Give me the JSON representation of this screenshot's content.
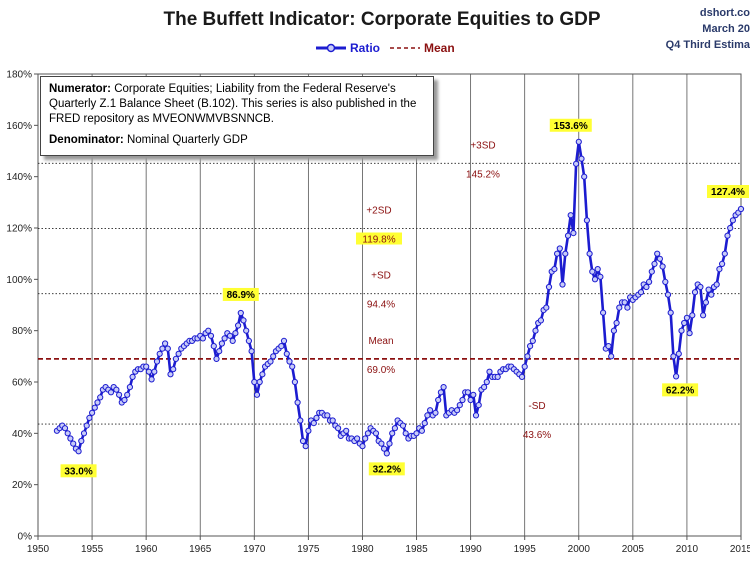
{
  "header": {
    "title": "The Buffett Indicator: Corporate Equities to GDP",
    "source_lines": [
      "dshort.co",
      "March 20",
      "Q4 Third Estima"
    ]
  },
  "legend": {
    "ratio": "Ratio",
    "mean": "Mean"
  },
  "note": {
    "numerator_label": "Numerator:",
    "numerator_text": "Corporate Equities; Liability from the Federal Reserve's Quarterly Z.1 Balance Sheet (B.102). This series is also published in the FRED repository  as MVEONWMVBSNNCB.",
    "denominator_label": "Denominator:",
    "denominator_text": "Nominal Quarterly GDP"
  },
  "colors": {
    "series": "#1c1cd0",
    "marker_fill": "#c8ccf8",
    "ref_line": "#8b1010",
    "highlight": "#ffff33",
    "grid": "#555555"
  },
  "chart_data": {
    "type": "line",
    "title": "The Buffett Indicator: Corporate Equities to GDP",
    "xlim": [
      1950,
      2015
    ],
    "ylim": [
      0,
      180
    ],
    "x_ticks": [
      "1950",
      "1955",
      "1960",
      "1965",
      "1970",
      "1975",
      "1980",
      "1985",
      "1990",
      "1995",
      "2000",
      "2005",
      "2010",
      "2015"
    ],
    "y_ticks": [
      "0%",
      "20%",
      "40%",
      "60%",
      "80%",
      "100%",
      "120%",
      "140%",
      "160%",
      "180%"
    ],
    "legend_position": "top-center",
    "series": [
      {
        "name": "Ratio",
        "points": [
          [
            1951.75,
            41
          ],
          [
            1952.0,
            42
          ],
          [
            1952.25,
            43
          ],
          [
            1952.5,
            42
          ],
          [
            1952.75,
            40
          ],
          [
            1953.0,
            38
          ],
          [
            1953.25,
            36
          ],
          [
            1953.5,
            34
          ],
          [
            1953.75,
            33
          ],
          [
            1954.0,
            37
          ],
          [
            1954.25,
            40
          ],
          [
            1954.5,
            43
          ],
          [
            1954.75,
            46
          ],
          [
            1955.0,
            48
          ],
          [
            1955.25,
            50
          ],
          [
            1955.5,
            52
          ],
          [
            1955.75,
            54
          ],
          [
            1956.0,
            57
          ],
          [
            1956.25,
            58
          ],
          [
            1956.5,
            57
          ],
          [
            1956.75,
            56
          ],
          [
            1957.0,
            58
          ],
          [
            1957.25,
            57
          ],
          [
            1957.5,
            55
          ],
          [
            1957.75,
            52
          ],
          [
            1958.0,
            53
          ],
          [
            1958.25,
            55
          ],
          [
            1958.5,
            58
          ],
          [
            1958.75,
            62
          ],
          [
            1959.0,
            64
          ],
          [
            1959.25,
            65
          ],
          [
            1959.5,
            65
          ],
          [
            1959.75,
            66
          ],
          [
            1960.0,
            66
          ],
          [
            1960.25,
            64
          ],
          [
            1960.5,
            61
          ],
          [
            1960.75,
            64
          ],
          [
            1961.0,
            68
          ],
          [
            1961.25,
            71
          ],
          [
            1961.5,
            73
          ],
          [
            1961.75,
            75
          ],
          [
            1962.0,
            73
          ],
          [
            1962.25,
            63
          ],
          [
            1962.5,
            65
          ],
          [
            1962.75,
            69
          ],
          [
            1963.0,
            71
          ],
          [
            1963.25,
            73
          ],
          [
            1963.5,
            74
          ],
          [
            1963.75,
            75
          ],
          [
            1964.0,
            76
          ],
          [
            1964.25,
            76
          ],
          [
            1964.5,
            77
          ],
          [
            1964.75,
            77
          ],
          [
            1965.0,
            78
          ],
          [
            1965.25,
            77
          ],
          [
            1965.5,
            79
          ],
          [
            1965.75,
            80
          ],
          [
            1966.0,
            78
          ],
          [
            1966.25,
            74
          ],
          [
            1966.5,
            69
          ],
          [
            1966.75,
            72
          ],
          [
            1967.0,
            75
          ],
          [
            1967.25,
            77
          ],
          [
            1967.5,
            79
          ],
          [
            1967.75,
            78
          ],
          [
            1968.0,
            76
          ],
          [
            1968.25,
            79
          ],
          [
            1968.5,
            82
          ],
          [
            1968.75,
            86.9
          ],
          [
            1969.0,
            84
          ],
          [
            1969.25,
            80
          ],
          [
            1969.5,
            76
          ],
          [
            1969.75,
            72
          ],
          [
            1970.0,
            60
          ],
          [
            1970.25,
            55
          ],
          [
            1970.5,
            60
          ],
          [
            1970.75,
            63
          ],
          [
            1971.0,
            66
          ],
          [
            1971.25,
            67
          ],
          [
            1971.5,
            68
          ],
          [
            1971.75,
            70
          ],
          [
            1972.0,
            72
          ],
          [
            1972.25,
            73
          ],
          [
            1972.5,
            74
          ],
          [
            1972.75,
            76
          ],
          [
            1973.0,
            71
          ],
          [
            1973.25,
            68
          ],
          [
            1973.5,
            66
          ],
          [
            1973.75,
            60
          ],
          [
            1974.0,
            52
          ],
          [
            1974.25,
            45
          ],
          [
            1974.5,
            37
          ],
          [
            1974.75,
            35
          ],
          [
            1975.0,
            41
          ],
          [
            1975.25,
            45
          ],
          [
            1975.5,
            44
          ],
          [
            1975.75,
            46
          ],
          [
            1976.0,
            48
          ],
          [
            1976.25,
            48
          ],
          [
            1976.5,
            47
          ],
          [
            1976.75,
            47
          ],
          [
            1977.0,
            45
          ],
          [
            1977.25,
            45
          ],
          [
            1977.5,
            43
          ],
          [
            1977.75,
            42
          ],
          [
            1978.0,
            39
          ],
          [
            1978.25,
            40
          ],
          [
            1978.5,
            41
          ],
          [
            1978.75,
            38
          ],
          [
            1979.0,
            38
          ],
          [
            1979.25,
            37
          ],
          [
            1979.5,
            38
          ],
          [
            1979.75,
            36
          ],
          [
            1980.0,
            35
          ],
          [
            1980.25,
            38
          ],
          [
            1980.5,
            40
          ],
          [
            1980.75,
            42
          ],
          [
            1981.0,
            41
          ],
          [
            1981.25,
            40
          ],
          [
            1981.5,
            37
          ],
          [
            1981.75,
            36
          ],
          [
            1982.0,
            34
          ],
          [
            1982.25,
            32.2
          ],
          [
            1982.5,
            36
          ],
          [
            1982.75,
            40
          ],
          [
            1983.0,
            42
          ],
          [
            1983.25,
            45
          ],
          [
            1983.5,
            44
          ],
          [
            1983.75,
            43
          ],
          [
            1984.0,
            40
          ],
          [
            1984.25,
            38
          ],
          [
            1984.5,
            39
          ],
          [
            1984.75,
            39
          ],
          [
            1985.0,
            40
          ],
          [
            1985.25,
            42
          ],
          [
            1985.5,
            41
          ],
          [
            1985.75,
            44
          ],
          [
            1986.0,
            47
          ],
          [
            1986.25,
            49
          ],
          [
            1986.5,
            47
          ],
          [
            1986.75,
            48
          ],
          [
            1987.0,
            53
          ],
          [
            1987.25,
            56
          ],
          [
            1987.5,
            58
          ],
          [
            1987.75,
            47
          ],
          [
            1988.0,
            48
          ],
          [
            1988.25,
            49
          ],
          [
            1988.5,
            48
          ],
          [
            1988.75,
            49
          ],
          [
            1989.0,
            51
          ],
          [
            1989.25,
            53
          ],
          [
            1989.5,
            56
          ],
          [
            1989.75,
            56
          ],
          [
            1990.0,
            53
          ],
          [
            1990.25,
            55
          ],
          [
            1990.5,
            47
          ],
          [
            1990.75,
            51
          ],
          [
            1991.0,
            57
          ],
          [
            1991.25,
            58
          ],
          [
            1991.5,
            60
          ],
          [
            1991.75,
            64
          ],
          [
            1992.0,
            62
          ],
          [
            1992.25,
            62
          ],
          [
            1992.5,
            62
          ],
          [
            1992.75,
            64
          ],
          [
            1993.0,
            65
          ],
          [
            1993.25,
            65
          ],
          [
            1993.5,
            66
          ],
          [
            1993.75,
            66
          ],
          [
            1994.0,
            65
          ],
          [
            1994.25,
            64
          ],
          [
            1994.5,
            63
          ],
          [
            1994.75,
            62
          ],
          [
            1995.0,
            66
          ],
          [
            1995.25,
            70
          ],
          [
            1995.5,
            74
          ],
          [
            1995.75,
            76
          ],
          [
            1996.0,
            80
          ],
          [
            1996.25,
            83
          ],
          [
            1996.5,
            84
          ],
          [
            1996.75,
            88
          ],
          [
            1997.0,
            89
          ],
          [
            1997.25,
            97
          ],
          [
            1997.5,
            103
          ],
          [
            1997.75,
            104
          ],
          [
            1998.0,
            110
          ],
          [
            1998.25,
            112
          ],
          [
            1998.5,
            98
          ],
          [
            1998.75,
            110
          ],
          [
            1999.0,
            117
          ],
          [
            1999.25,
            125
          ],
          [
            1999.5,
            118
          ],
          [
            1999.75,
            145
          ],
          [
            2000.0,
            153.6
          ],
          [
            2000.25,
            147
          ],
          [
            2000.5,
            140
          ],
          [
            2000.75,
            123
          ],
          [
            2001.0,
            110
          ],
          [
            2001.25,
            103
          ],
          [
            2001.5,
            100
          ],
          [
            2001.75,
            104
          ],
          [
            2002.0,
            101
          ],
          [
            2002.25,
            87
          ],
          [
            2002.5,
            73
          ],
          [
            2002.75,
            74
          ],
          [
            2003.0,
            70
          ],
          [
            2003.25,
            80
          ],
          [
            2003.5,
            83
          ],
          [
            2003.75,
            89
          ],
          [
            2004.0,
            91
          ],
          [
            2004.25,
            91
          ],
          [
            2004.5,
            89
          ],
          [
            2004.75,
            93
          ],
          [
            2005.0,
            92
          ],
          [
            2005.25,
            93
          ],
          [
            2005.5,
            94
          ],
          [
            2005.75,
            95
          ],
          [
            2006.0,
            98
          ],
          [
            2006.25,
            97
          ],
          [
            2006.5,
            99
          ],
          [
            2006.75,
            103
          ],
          [
            2007.0,
            106
          ],
          [
            2007.25,
            110
          ],
          [
            2007.5,
            108
          ],
          [
            2007.75,
            105
          ],
          [
            2008.0,
            99
          ],
          [
            2008.25,
            94
          ],
          [
            2008.5,
            87
          ],
          [
            2008.75,
            70
          ],
          [
            2009.0,
            62.2
          ],
          [
            2009.25,
            71
          ],
          [
            2009.5,
            80
          ],
          [
            2009.75,
            83
          ],
          [
            2010.0,
            85
          ],
          [
            2010.25,
            79
          ],
          [
            2010.5,
            86
          ],
          [
            2010.75,
            95
          ],
          [
            2011.0,
            98
          ],
          [
            2011.25,
            97
          ],
          [
            2011.5,
            86
          ],
          [
            2011.75,
            91
          ],
          [
            2012.0,
            96
          ],
          [
            2012.25,
            94
          ],
          [
            2012.5,
            97
          ],
          [
            2012.75,
            98
          ],
          [
            2013.0,
            104
          ],
          [
            2013.25,
            106
          ],
          [
            2013.5,
            110
          ],
          [
            2013.75,
            117
          ],
          [
            2014.0,
            120
          ],
          [
            2014.25,
            123
          ],
          [
            2014.5,
            125
          ],
          [
            2014.75,
            126
          ],
          [
            2015.0,
            127.4
          ]
        ]
      }
    ],
    "reference_lines": [
      {
        "name": "Mean",
        "value": 69.0,
        "label": "Mean",
        "value_label": "69.0%",
        "style": "dashed-thick"
      },
      {
        "name": "+3SD",
        "value": 145.2,
        "label": "+3SD",
        "value_label": "145.2%",
        "style": "dotted"
      },
      {
        "name": "+2SD",
        "value": 119.8,
        "label": "+2SD",
        "value_label": "119.8%",
        "style": "dotted",
        "highlight": true
      },
      {
        "name": "+SD",
        "value": 94.4,
        "label": "+SD",
        "value_label": "94.4%",
        "style": "dotted"
      },
      {
        "name": "-SD",
        "value": 43.6,
        "label": "-SD",
        "value_label": "43.6%",
        "style": "dotted"
      }
    ],
    "annotations": [
      {
        "x": 1953.75,
        "y": 33.0,
        "text": "33.0%"
      },
      {
        "x": 1968.75,
        "y": 86.9,
        "text": "86.9%"
      },
      {
        "x": 1982.25,
        "y": 32.2,
        "text": "32.2%"
      },
      {
        "x": 2000.0,
        "y": 153.6,
        "text": "153.6%"
      },
      {
        "x": 2009.0,
        "y": 62.2,
        "text": "62.2%"
      },
      {
        "x": 2015.0,
        "y": 127.4,
        "text": "127.4%"
      }
    ]
  }
}
